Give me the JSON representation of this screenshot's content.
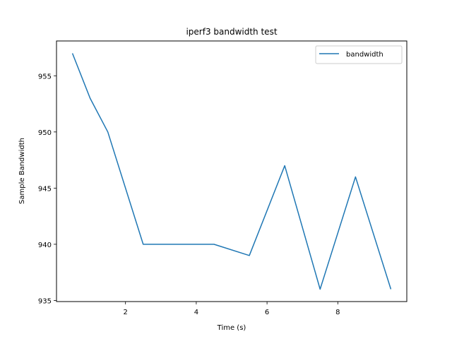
{
  "chart_data": {
    "type": "line",
    "title": "iperf3 bandwidth test",
    "xlabel": "Time (s)",
    "ylabel": "Sample Bandwidth",
    "xlim": [
      0.05,
      9.95
    ],
    "ylim": [
      934.9,
      958.1
    ],
    "x_ticks": [
      2,
      4,
      6,
      8
    ],
    "y_ticks": [
      935,
      940,
      945,
      950,
      955
    ],
    "grid": false,
    "legend": "top-right",
    "colors": {
      "series": "#1f77b4"
    },
    "series": [
      {
        "name": "bandwidth",
        "x": [
          0.5,
          1.0,
          1.5,
          2.5,
          3.5,
          4.5,
          5.5,
          6.5,
          7.5,
          8.5,
          9.5
        ],
        "values": [
          957,
          953,
          950,
          940,
          940,
          940,
          939,
          947,
          936,
          946,
          936
        ]
      }
    ]
  }
}
